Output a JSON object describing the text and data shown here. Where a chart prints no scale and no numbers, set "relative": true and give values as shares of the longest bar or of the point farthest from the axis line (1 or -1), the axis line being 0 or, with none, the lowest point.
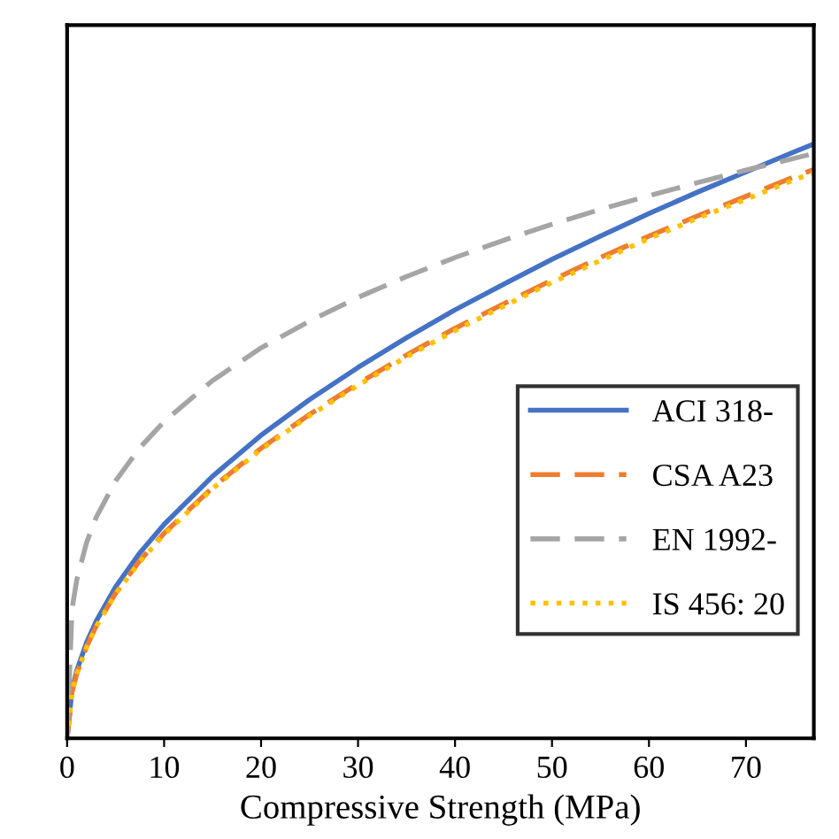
{
  "chart_data": {
    "type": "line",
    "relative": true,
    "xlabel": "Compressive Strength (MPa)",
    "x": [
      0,
      0.5,
      1,
      2,
      3,
      5,
      7.5,
      10,
      15,
      20,
      25,
      30,
      35,
      40,
      45,
      50,
      55,
      60,
      65,
      70,
      75,
      77
    ],
    "xlim": [
      0,
      77
    ],
    "xticks": [
      0,
      10,
      20,
      30,
      40,
      50,
      60,
      70
    ],
    "tick_labels": "x",
    "grid": false,
    "legend": "right",
    "marker": "none",
    "series": [
      {
        "name": "ACI 318-",
        "color": "#4472c4",
        "line_style": "solid",
        "values": [
          0,
          0.081,
          0.114,
          0.161,
          0.197,
          0.255,
          0.312,
          0.36,
          0.441,
          0.51,
          0.57,
          0.624,
          0.674,
          0.721,
          0.764,
          0.806,
          0.845,
          0.883,
          0.919,
          0.953,
          0.987,
          1
        ]
      },
      {
        "name": "CSA A23",
        "color": "#ed7d31",
        "line_style": "dashed",
        "values": [
          0,
          0.077,
          0.109,
          0.154,
          0.189,
          0.244,
          0.299,
          0.345,
          0.422,
          0.488,
          0.545,
          0.597,
          0.645,
          0.69,
          0.731,
          0.771,
          0.809,
          0.845,
          0.879,
          0.912,
          0.945,
          0.957
        ]
      },
      {
        "name": "EN 1992-",
        "color": "#a5a5a5",
        "line_style": "dashed",
        "values": [
          0,
          0.217,
          0.267,
          0.329,
          0.372,
          0.433,
          0.489,
          0.533,
          0.602,
          0.657,
          0.702,
          0.742,
          0.777,
          0.809,
          0.838,
          0.865,
          0.89,
          0.913,
          0.935,
          0.956,
          0.976,
          0.984
        ]
      },
      {
        "name": "IS 456: 20",
        "color": "#ffc000",
        "line_style": "dotted",
        "values": [
          0,
          0.077,
          0.109,
          0.153,
          0.188,
          0.243,
          0.297,
          0.343,
          0.42,
          0.486,
          0.543,
          0.594,
          0.642,
          0.686,
          0.727,
          0.767,
          0.804,
          0.841,
          0.875,
          0.907,
          0.94,
          0.952
        ]
      }
    ]
  }
}
